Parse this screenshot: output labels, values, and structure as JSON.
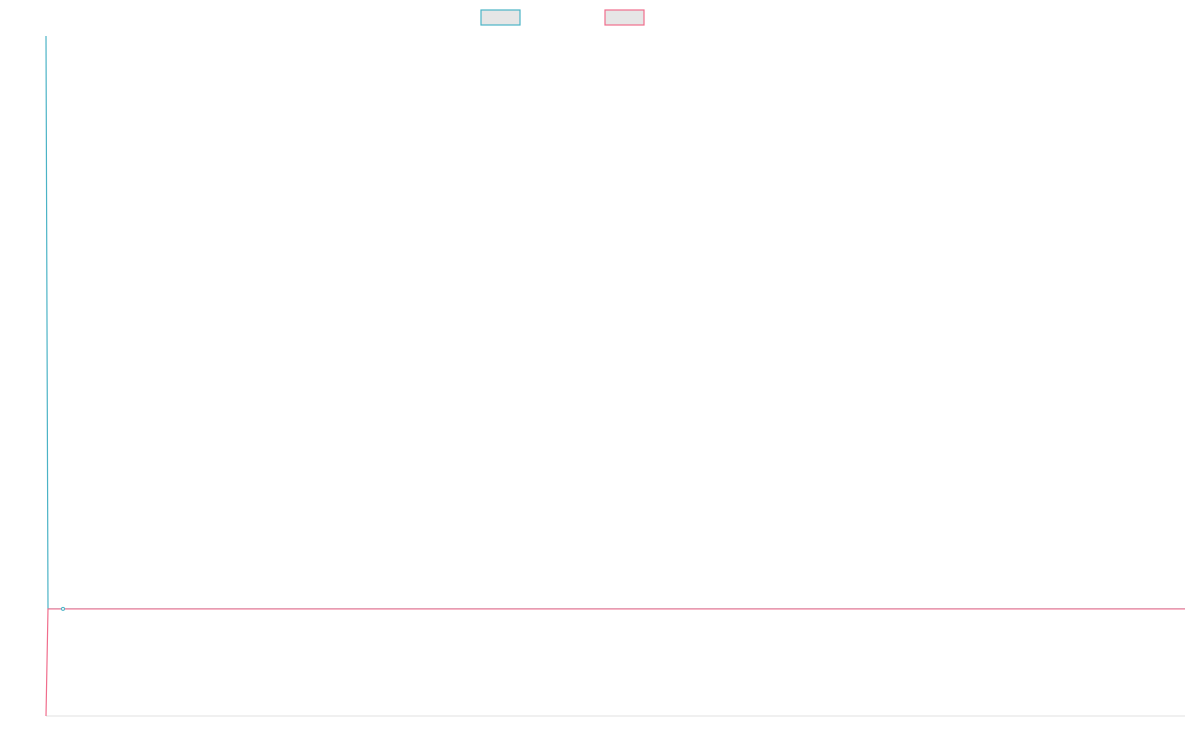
{
  "chart_data": {
    "type": "line",
    "title": "",
    "xlabel": "",
    "ylabel": "",
    "x": [
      0,
      1,
      2,
      3,
      4,
      5,
      6,
      7,
      8,
      9,
      10,
      11,
      12,
      13,
      14,
      15,
      16,
      17,
      18,
      19,
      20,
      21,
      22,
      23,
      24,
      25,
      26,
      27,
      28,
      29,
      30,
      31,
      32,
      33,
      34,
      35,
      36,
      37,
      38,
      39,
      40,
      41,
      42,
      43,
      44,
      45,
      46,
      47,
      48,
      49,
      50,
      51,
      52,
      53,
      54,
      55,
      56,
      57,
      58,
      59,
      60,
      61,
      62,
      63,
      64,
      65,
      66,
      67,
      68,
      69,
      70,
      71,
      72,
      73,
      74,
      75
    ],
    "xlim": [
      0,
      75
    ],
    "ylim": [
      -1,
      5.35
    ],
    "grid": false,
    "legend_position": "top-center",
    "series": [
      {
        "name": "",
        "color": "#4bb3c6",
        "values": [
          5.35,
          0,
          0,
          0,
          0,
          0,
          0,
          0,
          0,
          0,
          0,
          0,
          0,
          0,
          0,
          0,
          0,
          0,
          0,
          0,
          0,
          0,
          0,
          0,
          0,
          0,
          0,
          0,
          0,
          0,
          0,
          0,
          0,
          0,
          0,
          0,
          0,
          0,
          0,
          0,
          0,
          0,
          0,
          0,
          0,
          0,
          0,
          0,
          0,
          0,
          0,
          0,
          0,
          0,
          0,
          0,
          0,
          0,
          0,
          0,
          0,
          0,
          0,
          0,
          0,
          0,
          0,
          0,
          0,
          0,
          0,
          0,
          0,
          0,
          0,
          0
        ]
      },
      {
        "name": "",
        "color": "#f06d8c",
        "values": [
          -1,
          0,
          0,
          0,
          0,
          0,
          0,
          0,
          0,
          0,
          0,
          0,
          0,
          0,
          0,
          0,
          0,
          0,
          0,
          0,
          0,
          0,
          0,
          0,
          0,
          0,
          0,
          0,
          0,
          0,
          0,
          0,
          0,
          0,
          0,
          0,
          0,
          0,
          0,
          0,
          0,
          0,
          0,
          0,
          0,
          0,
          0,
          0,
          0,
          0,
          0,
          0,
          0,
          0,
          0,
          0,
          0,
          0,
          0,
          0,
          0,
          0,
          0,
          0,
          0,
          0,
          0,
          0,
          0,
          0,
          0,
          0,
          0,
          0,
          0,
          0
        ]
      }
    ]
  }
}
